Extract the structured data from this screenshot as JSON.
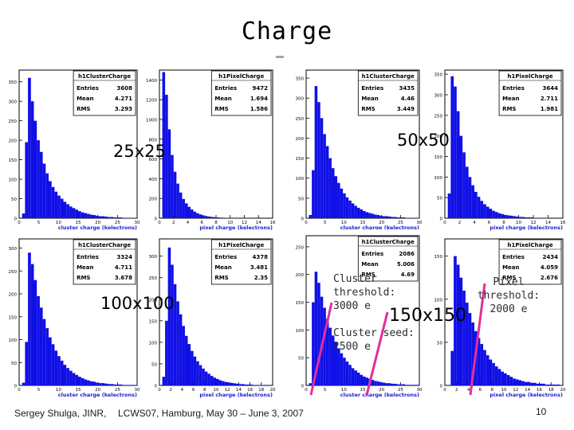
{
  "slide": {
    "title": "Charge",
    "footer_author": "Sergey Shulga, JINR,",
    "footer_event": "LCWS07, Hamburg, May 30 – June 3, 2007",
    "page_number": "10",
    "labels": {
      "p25": "25x25",
      "p50": "50x50",
      "p100": "100x100",
      "p150": "150x150"
    },
    "notes": {
      "cluster_threshold": [
        "Cluster",
        "threshold:",
        "3000 e"
      ],
      "cluster_seed": [
        "Cluster seed:",
        "2500 e"
      ],
      "pixel_threshold": [
        "Pixel",
        "threshold:",
        "2000 e"
      ]
    }
  },
  "chart_data": [
    {
      "id": "h1",
      "type": "bar",
      "title": "h1ClusterCharge",
      "stats": {
        "Entries": "3608",
        "Mean": "4.271",
        "RMS": "3.293"
      },
      "xlabel": "cluster charge (kelectrons)",
      "ylim": [
        0,
        380
      ],
      "xlim": [
        0,
        30
      ],
      "xticks": [
        "0",
        "5",
        "10",
        "15",
        "20",
        "25",
        "30"
      ],
      "yticks": [
        "0",
        "50",
        "100",
        "150",
        "200",
        "250",
        "300",
        "350"
      ],
      "values": [
        0,
        12,
        195,
        360,
        300,
        250,
        200,
        170,
        140,
        115,
        95,
        80,
        68,
        58,
        50,
        42,
        36,
        30,
        26,
        22,
        18,
        15,
        13,
        11,
        9,
        8,
        6,
        5,
        5,
        4,
        3,
        3,
        2,
        2,
        2,
        1,
        1,
        1,
        1,
        1
      ]
    },
    {
      "id": "h2",
      "type": "bar",
      "title": "h1PixelCharge",
      "stats": {
        "Entries": "9472",
        "Mean": "1.694",
        "RMS": "1.586"
      },
      "xlabel": "pixel charge (kelectrons)",
      "ylim": [
        0,
        1500
      ],
      "xlim": [
        0,
        16
      ],
      "xticks": [
        "0",
        "2",
        "4",
        "6",
        "8",
        "10",
        "12",
        "14",
        "16"
      ],
      "yticks": [
        "0",
        "200",
        "400",
        "600",
        "800",
        "1000",
        "1200",
        "1400"
      ],
      "values": [
        0,
        1480,
        1250,
        900,
        640,
        470,
        350,
        260,
        195,
        150,
        115,
        88,
        66,
        50,
        38,
        29,
        22,
        17,
        13,
        10,
        8,
        6,
        5,
        4,
        3,
        3,
        2,
        2,
        1,
        1,
        1,
        1,
        1,
        0,
        0,
        0,
        0,
        0,
        0,
        0
      ]
    },
    {
      "id": "h3",
      "type": "bar",
      "title": "h1ClusterCharge",
      "stats": {
        "Entries": "3435",
        "Mean": "4.46",
        "RMS": "3.449"
      },
      "xlabel": "cluster charge (kelectrons)",
      "ylim": [
        0,
        370
      ],
      "xlim": [
        0,
        30
      ],
      "xticks": [
        "0",
        "5",
        "10",
        "15",
        "20",
        "25",
        "30"
      ],
      "yticks": [
        "0",
        "50",
        "100",
        "150",
        "200",
        "250",
        "300",
        "350"
      ],
      "values": [
        0,
        8,
        120,
        330,
        290,
        250,
        210,
        180,
        150,
        125,
        105,
        88,
        74,
        62,
        52,
        44,
        37,
        31,
        26,
        22,
        18,
        15,
        13,
        11,
        9,
        8,
        6,
        5,
        5,
        4,
        3,
        3,
        2,
        2,
        2,
        1,
        1,
        1,
        1,
        1
      ]
    },
    {
      "id": "h4",
      "type": "bar",
      "title": "h1PixelCharge",
      "stats": {
        "Entries": "3644",
        "Mean": "2.711",
        "RMS": "1.981"
      },
      "xlabel": "pixel charge (kelectrons)",
      "ylim": [
        0,
        360
      ],
      "xlim": [
        0,
        16
      ],
      "xticks": [
        "0",
        "2",
        "4",
        "6",
        "8",
        "10",
        "12",
        "14",
        "16"
      ],
      "yticks": [
        "0",
        "50",
        "100",
        "150",
        "200",
        "250",
        "300",
        "350"
      ],
      "values": [
        0,
        60,
        345,
        320,
        260,
        200,
        160,
        125,
        100,
        80,
        64,
        52,
        42,
        34,
        28,
        23,
        18,
        15,
        12,
        10,
        8,
        7,
        6,
        5,
        4,
        3,
        3,
        2,
        2,
        2,
        1,
        1,
        1,
        1,
        1,
        0,
        0,
        0,
        0,
        0
      ]
    },
    {
      "id": "h5",
      "type": "bar",
      "title": "h1ClusterCharge",
      "stats": {
        "Entries": "3324",
        "Mean": "4.711",
        "RMS": "3.678"
      },
      "xlabel": "cluster charge (kelectrons)",
      "ylim": [
        0,
        320
      ],
      "xlim": [
        0,
        30
      ],
      "xticks": [
        "0",
        "5",
        "10",
        "15",
        "20",
        "25",
        "30"
      ],
      "yticks": [
        "0",
        "50",
        "100",
        "150",
        "200",
        "250",
        "300"
      ],
      "values": [
        0,
        6,
        95,
        290,
        265,
        230,
        195,
        170,
        145,
        125,
        105,
        90,
        76,
        64,
        54,
        45,
        38,
        32,
        27,
        23,
        19,
        16,
        13,
        11,
        9,
        8,
        6,
        5,
        5,
        4,
        3,
        3,
        2,
        2,
        2,
        1,
        1,
        1,
        1,
        1
      ]
    },
    {
      "id": "h6",
      "type": "bar",
      "title": "h1PixelCharge",
      "stats": {
        "Entries": "4378",
        "Mean": "3.481",
        "RMS": "2.35"
      },
      "xlabel": "pixel charge (kelectrons)",
      "ylim": [
        0,
        340
      ],
      "xlim": [
        0,
        20
      ],
      "xticks": [
        "0",
        "2",
        "4",
        "6",
        "8",
        "10",
        "12",
        "14",
        "16",
        "18",
        "20"
      ],
      "yticks": [
        "0",
        "50",
        "100",
        "150",
        "200",
        "250",
        "300"
      ],
      "values": [
        0,
        20,
        150,
        320,
        280,
        235,
        195,
        165,
        138,
        115,
        96,
        80,
        67,
        56,
        47,
        39,
        32,
        27,
        22,
        18,
        15,
        12,
        10,
        8,
        7,
        6,
        5,
        4,
        3,
        3,
        2,
        2,
        2,
        1,
        1,
        1,
        1,
        1,
        0,
        0
      ]
    },
    {
      "id": "h7",
      "type": "bar",
      "title": "h1ClusterCharge",
      "stats": {
        "Entries": "2086",
        "Mean": "5.006",
        "RMS": "4.69"
      },
      "xlabel": "cluster charge (kelectrons)",
      "ylim": [
        0,
        270
      ],
      "xlim": [
        0,
        30
      ],
      "xticks": [
        "0",
        "5",
        "10",
        "15",
        "20",
        "25",
        "30"
      ],
      "yticks": [
        "0",
        "50",
        "100",
        "150",
        "200",
        "250"
      ],
      "values": [
        0,
        4,
        150,
        205,
        185,
        160,
        140,
        120,
        104,
        90,
        78,
        67,
        58,
        50,
        43,
        37,
        31,
        27,
        23,
        19,
        16,
        14,
        12,
        10,
        8,
        7,
        6,
        5,
        4,
        4,
        3,
        3,
        2,
        2,
        2,
        1,
        1,
        1,
        1,
        1
      ]
    },
    {
      "id": "h8",
      "type": "bar",
      "title": "h1PixelCharge",
      "stats": {
        "Entries": "2434",
        "Mean": "4.059",
        "RMS": "2.676"
      },
      "xlabel": "pixel charge (kelectrons)",
      "ylim": [
        0,
        170
      ],
      "xlim": [
        0,
        20
      ],
      "xticks": [
        "0",
        "2",
        "4",
        "6",
        "8",
        "10",
        "12",
        "14",
        "16",
        "18",
        "20"
      ],
      "yticks": [
        "0",
        "50",
        "100",
        "150"
      ],
      "values": [
        0,
        0,
        40,
        150,
        140,
        125,
        110,
        96,
        84,
        73,
        63,
        55,
        48,
        41,
        35,
        30,
        26,
        22,
        19,
        16,
        14,
        12,
        10,
        8,
        7,
        6,
        5,
        4,
        4,
        3,
        3,
        2,
        2,
        2,
        1,
        1,
        1,
        1,
        1,
        0
      ]
    }
  ]
}
